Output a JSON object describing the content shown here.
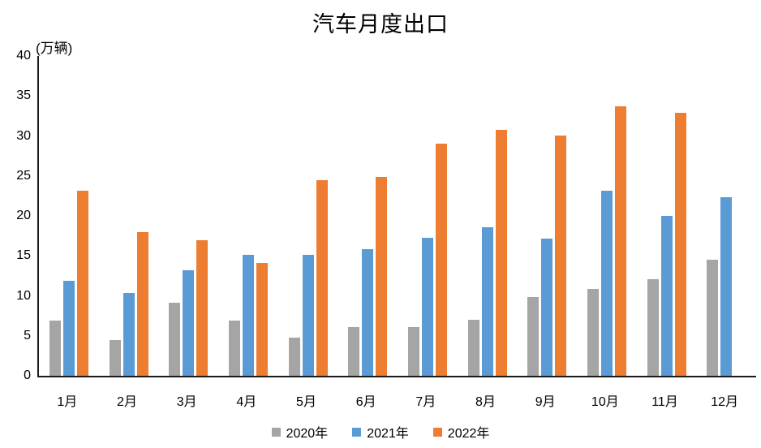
{
  "chart_data": {
    "type": "bar",
    "title": "汽车月度出口",
    "ylabel": "(万辆)",
    "xlabel": "",
    "categories": [
      "1月",
      "2月",
      "3月",
      "4月",
      "5月",
      "6月",
      "7月",
      "8月",
      "9月",
      "10月",
      "11月",
      "12月"
    ],
    "series": [
      {
        "name": "2020年",
        "color": "#A5A5A5",
        "values": [
          6.9,
          4.5,
          9.1,
          6.9,
          4.8,
          6.1,
          6.1,
          7.0,
          9.8,
          10.9,
          12.1,
          14.5
        ]
      },
      {
        "name": "2021年",
        "color": "#5B9BD5",
        "values": [
          11.9,
          10.4,
          13.2,
          15.1,
          15.1,
          15.8,
          17.3,
          18.6,
          17.2,
          23.1,
          20.0,
          22.3
        ]
      },
      {
        "name": "2022年",
        "color": "#ED7D31",
        "values": [
          23.1,
          18.0,
          17.0,
          14.1,
          24.5,
          24.9,
          29.0,
          30.8,
          30.1,
          33.7,
          32.9,
          null
        ]
      }
    ],
    "ylim": [
      0,
      40
    ],
    "ytick_step": 5,
    "yticks": [
      0,
      5,
      10,
      15,
      20,
      25,
      30,
      35,
      40
    ],
    "grid": false,
    "legend_position": "bottom",
    "axis_color": "#1a1a1a"
  }
}
